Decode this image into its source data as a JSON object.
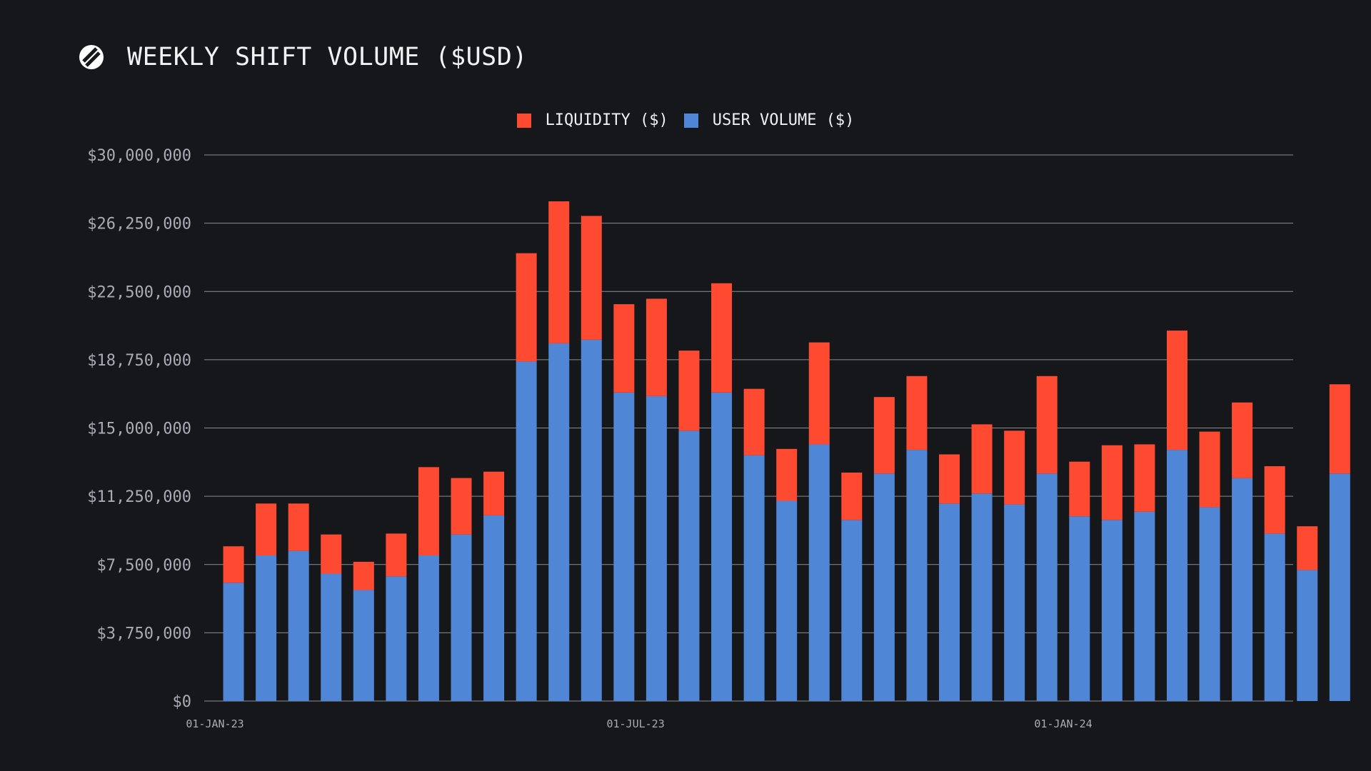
{
  "header": {
    "title": "WEEKLY SHIFT VOLUME ($USD)",
    "logo_icon": "sideshift-logo-icon"
  },
  "colors": {
    "background": "#16171b",
    "liquidity": "#ff4a32",
    "user_volume": "#4f86d6",
    "grid": "#8a8d94",
    "tick_text": "#a9acb4"
  },
  "chart_data": {
    "type": "bar",
    "stacked": true,
    "title": "WEEKLY SHIFT VOLUME ($USD)",
    "xlabel": "",
    "ylabel": "",
    "ylim": [
      0,
      30000000
    ],
    "yticks": [
      0,
      3750000,
      7500000,
      11250000,
      15000000,
      18750000,
      22500000,
      26250000,
      30000000
    ],
    "ytick_labels": [
      "$0",
      "$3,750,000",
      "$7,500,000",
      "$11,250,000",
      "$15,000,000",
      "$18,750,000",
      "$22,500,000",
      "$26,250,000",
      "$30,000,000"
    ],
    "x_tick_labels": [
      {
        "label": "01-JAN-23",
        "x": "2023-01-01"
      },
      {
        "label": "01-JUL-23",
        "x": "2023-07-01"
      },
      {
        "label": "01-JAN-24",
        "x": "2024-01-01"
      }
    ],
    "grid": true,
    "legend_position": "top-center",
    "x": [
      "2023-01-09",
      "2023-01-23",
      "2023-02-06",
      "2023-02-20",
      "2023-03-06",
      "2023-03-20",
      "2023-04-03",
      "2023-04-17",
      "2023-05-01",
      "2023-05-15",
      "2023-05-29",
      "2023-06-12",
      "2023-06-26",
      "2023-07-10",
      "2023-07-24",
      "2023-08-07",
      "2023-08-21",
      "2023-09-04",
      "2023-09-18",
      "2023-10-02",
      "2023-10-16",
      "2023-10-30",
      "2023-11-13",
      "2023-11-27",
      "2023-12-11",
      "2023-12-25",
      "2024-01-08",
      "2024-01-22",
      "2024-02-05",
      "2024-02-19",
      "2024-03-04",
      "2024-03-18",
      "2024-04-01",
      "2024-04-15",
      "2024-04-29"
    ],
    "series": [
      {
        "name": "USER VOLUME ($)",
        "color": "#4f86d6",
        "values": [
          6500000,
          8000000,
          8250000,
          7000000,
          6100000,
          6850000,
          8000000,
          9150000,
          10200000,
          18650000,
          19650000,
          19850000,
          16950000,
          16750000,
          14850000,
          16950000,
          13500000,
          11000000,
          14100000,
          9950000,
          12500000,
          13800000,
          10850000,
          11400000,
          10800000,
          12500000,
          10150000,
          9950000,
          10400000,
          13800000,
          10650000,
          12250000,
          9200000,
          7200000,
          12500000
        ]
      },
      {
        "name": "LIQUIDITY ($)",
        "color": "#ff4a32",
        "values": [
          2000000,
          2850000,
          2600000,
          2150000,
          1550000,
          2350000,
          4850000,
          3100000,
          2400000,
          5950000,
          7800000,
          6800000,
          4850000,
          5350000,
          4400000,
          6000000,
          3650000,
          2850000,
          5600000,
          2600000,
          4200000,
          4050000,
          2700000,
          3800000,
          4050000,
          5350000,
          3000000,
          4100000,
          3700000,
          6550000,
          4150000,
          4150000,
          3700000,
          2400000,
          4900000
        ]
      }
    ]
  },
  "legend": [
    {
      "label": "LIQUIDITY ($)",
      "color": "#ff4a32"
    },
    {
      "label": "USER VOLUME ($)",
      "color": "#4f86d6"
    }
  ]
}
